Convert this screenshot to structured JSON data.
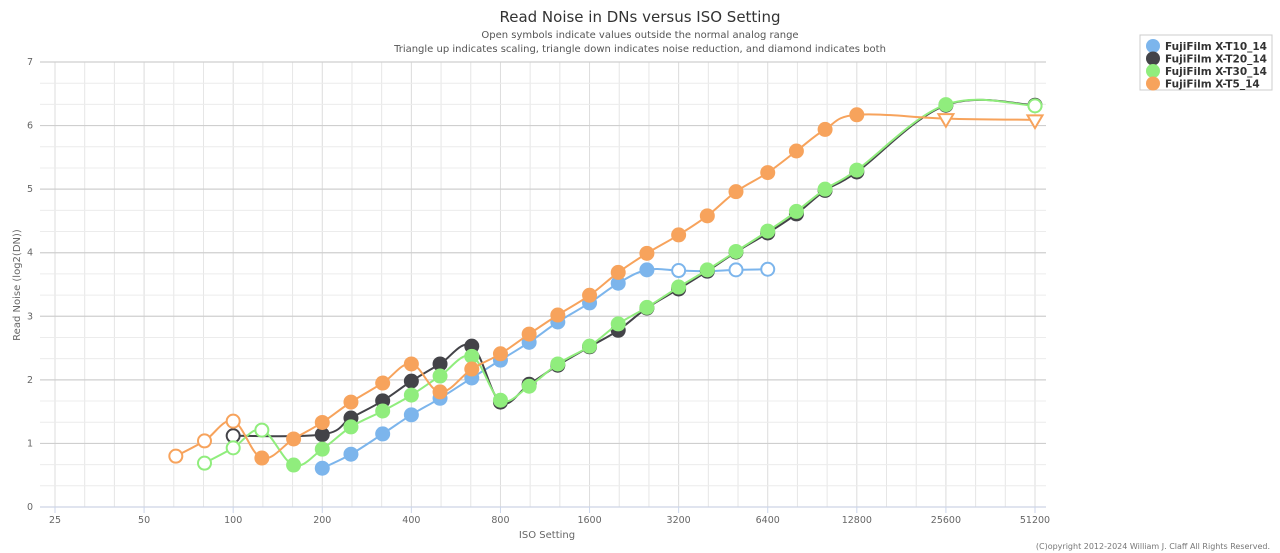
{
  "chart_data": {
    "type": "line",
    "title": "Read Noise in DNs versus ISO Setting",
    "subtitles": [
      "Open symbols indicate values outside the normal analog range",
      "Triangle up indicates scaling, triangle down indicates noise reduction, and diamond indicates both"
    ],
    "xlabel": "ISO Setting",
    "ylabel": "Read Noise (log2(DN))",
    "x_scale": "log2",
    "xlim": [
      25,
      51200
    ],
    "ylim": [
      0,
      7
    ],
    "x_ticks": [
      "25",
      "50",
      "100",
      "200",
      "400",
      "800",
      "1600",
      "3200",
      "6400",
      "12800",
      "25600",
      "51200"
    ],
    "y_ticks": [
      "0",
      "1",
      "2",
      "3",
      "4",
      "5",
      "6",
      "7"
    ],
    "grid": true,
    "legend_position": "top-right",
    "copyright": "(C)opyright 2012-2024 William J. Claff All Rights Reserved.",
    "series": [
      {
        "name": "FujiFilm X-T10_14",
        "color": "#7cb5ec",
        "points": [
          {
            "x": 200,
            "y": 0.61,
            "m": "filled"
          },
          {
            "x": 250,
            "y": 0.83,
            "m": "filled"
          },
          {
            "x": 320,
            "y": 1.15,
            "m": "filled"
          },
          {
            "x": 400,
            "y": 1.45,
            "m": "filled"
          },
          {
            "x": 500,
            "y": 1.71,
            "m": "filled"
          },
          {
            "x": 640,
            "y": 2.03,
            "m": "filled"
          },
          {
            "x": 800,
            "y": 2.31,
            "m": "filled"
          },
          {
            "x": 1000,
            "y": 2.59,
            "m": "filled"
          },
          {
            "x": 1250,
            "y": 2.91,
            "m": "filled"
          },
          {
            "x": 1600,
            "y": 3.21,
            "m": "filled"
          },
          {
            "x": 2000,
            "y": 3.52,
            "m": "filled"
          },
          {
            "x": 2500,
            "y": 3.73,
            "m": "filled"
          },
          {
            "x": 3200,
            "y": 3.72,
            "m": "open"
          },
          {
            "x": 4000,
            "y": 3.71,
            "m": "filled"
          },
          {
            "x": 5000,
            "y": 3.73,
            "m": "open"
          },
          {
            "x": 6400,
            "y": 3.74,
            "m": "open"
          }
        ]
      },
      {
        "name": "FujiFilm X-T20_14",
        "color": "#434348",
        "points": [
          {
            "x": 100,
            "y": 1.12,
            "m": "open"
          },
          {
            "x": 200,
            "y": 1.14,
            "m": "filled"
          },
          {
            "x": 250,
            "y": 1.4,
            "m": "filled"
          },
          {
            "x": 320,
            "y": 1.67,
            "m": "filled"
          },
          {
            "x": 400,
            "y": 1.98,
            "m": "filled"
          },
          {
            "x": 500,
            "y": 2.25,
            "m": "filled"
          },
          {
            "x": 640,
            "y": 2.53,
            "m": "filled"
          },
          {
            "x": 800,
            "y": 1.65,
            "m": "filled"
          },
          {
            "x": 1000,
            "y": 1.93,
            "m": "filled"
          },
          {
            "x": 1250,
            "y": 2.23,
            "m": "filled"
          },
          {
            "x": 1600,
            "y": 2.52,
            "m": "filled"
          },
          {
            "x": 2000,
            "y": 2.78,
            "m": "filled"
          },
          {
            "x": 2500,
            "y": 3.13,
            "m": "filled"
          },
          {
            "x": 3200,
            "y": 3.43,
            "m": "filled"
          },
          {
            "x": 4000,
            "y": 3.71,
            "m": "filled"
          },
          {
            "x": 5000,
            "y": 4.01,
            "m": "filled"
          },
          {
            "x": 6400,
            "y": 4.31,
            "m": "filled"
          },
          {
            "x": 8000,
            "y": 4.61,
            "m": "filled"
          },
          {
            "x": 10000,
            "y": 4.98,
            "m": "filled"
          },
          {
            "x": 12800,
            "y": 5.27,
            "m": "filled"
          },
          {
            "x": 25600,
            "y": 6.32,
            "m": "filled"
          },
          {
            "x": 51200,
            "y": 6.32,
            "m": "open"
          }
        ]
      },
      {
        "name": "FujiFilm X-T30_14",
        "color": "#90ed7d",
        "points": [
          {
            "x": 80,
            "y": 0.69,
            "m": "open"
          },
          {
            "x": 100,
            "y": 0.93,
            "m": "open"
          },
          {
            "x": 125,
            "y": 1.21,
            "m": "open"
          },
          {
            "x": 160,
            "y": 0.66,
            "m": "filled"
          },
          {
            "x": 200,
            "y": 0.91,
            "m": "filled"
          },
          {
            "x": 250,
            "y": 1.26,
            "m": "filled"
          },
          {
            "x": 320,
            "y": 1.51,
            "m": "filled"
          },
          {
            "x": 400,
            "y": 1.76,
            "m": "filled"
          },
          {
            "x": 500,
            "y": 2.06,
            "m": "filled"
          },
          {
            "x": 640,
            "y": 2.37,
            "m": "filled"
          },
          {
            "x": 800,
            "y": 1.68,
            "m": "filled"
          },
          {
            "x": 1000,
            "y": 1.9,
            "m": "filled"
          },
          {
            "x": 1250,
            "y": 2.25,
            "m": "filled"
          },
          {
            "x": 1600,
            "y": 2.53,
            "m": "filled"
          },
          {
            "x": 2000,
            "y": 2.88,
            "m": "filled"
          },
          {
            "x": 2500,
            "y": 3.14,
            "m": "filled"
          },
          {
            "x": 3200,
            "y": 3.46,
            "m": "filled"
          },
          {
            "x": 4000,
            "y": 3.73,
            "m": "filled"
          },
          {
            "x": 5000,
            "y": 4.02,
            "m": "filled"
          },
          {
            "x": 6400,
            "y": 4.34,
            "m": "filled"
          },
          {
            "x": 8000,
            "y": 4.65,
            "m": "filled"
          },
          {
            "x": 10000,
            "y": 5.0,
            "m": "filled"
          },
          {
            "x": 12800,
            "y": 5.3,
            "m": "filled"
          },
          {
            "x": 25600,
            "y": 6.33,
            "m": "filled"
          },
          {
            "x": 51200,
            "y": 6.31,
            "m": "open"
          }
        ]
      },
      {
        "name": "FujiFilm X-T5_14",
        "color": "#f7a35c",
        "points": [
          {
            "x": 64,
            "y": 0.8,
            "m": "open"
          },
          {
            "x": 80,
            "y": 1.04,
            "m": "open"
          },
          {
            "x": 100,
            "y": 1.35,
            "m": "open"
          },
          {
            "x": 125,
            "y": 0.77,
            "m": "filled"
          },
          {
            "x": 160,
            "y": 1.07,
            "m": "filled"
          },
          {
            "x": 200,
            "y": 1.33,
            "m": "filled"
          },
          {
            "x": 250,
            "y": 1.65,
            "m": "filled"
          },
          {
            "x": 320,
            "y": 1.95,
            "m": "filled"
          },
          {
            "x": 400,
            "y": 2.25,
            "m": "filled"
          },
          {
            "x": 500,
            "y": 1.81,
            "m": "filled"
          },
          {
            "x": 640,
            "y": 2.17,
            "m": "filled"
          },
          {
            "x": 800,
            "y": 2.41,
            "m": "filled"
          },
          {
            "x": 1000,
            "y": 2.72,
            "m": "filled"
          },
          {
            "x": 1250,
            "y": 3.02,
            "m": "filled"
          },
          {
            "x": 1600,
            "y": 3.33,
            "m": "filled"
          },
          {
            "x": 2000,
            "y": 3.69,
            "m": "filled"
          },
          {
            "x": 2500,
            "y": 3.99,
            "m": "filled"
          },
          {
            "x": 3200,
            "y": 4.28,
            "m": "filled"
          },
          {
            "x": 4000,
            "y": 4.58,
            "m": "filled"
          },
          {
            "x": 5000,
            "y": 4.96,
            "m": "filled"
          },
          {
            "x": 6400,
            "y": 5.26,
            "m": "filled"
          },
          {
            "x": 8000,
            "y": 5.6,
            "m": "filled"
          },
          {
            "x": 10000,
            "y": 5.94,
            "m": "filled"
          },
          {
            "x": 12800,
            "y": 6.17,
            "m": "filled"
          },
          {
            "x": 25600,
            "y": 6.11,
            "m": "open-triangle-down"
          },
          {
            "x": 51200,
            "y": 6.09,
            "m": "open-triangle-down"
          }
        ]
      }
    ]
  }
}
